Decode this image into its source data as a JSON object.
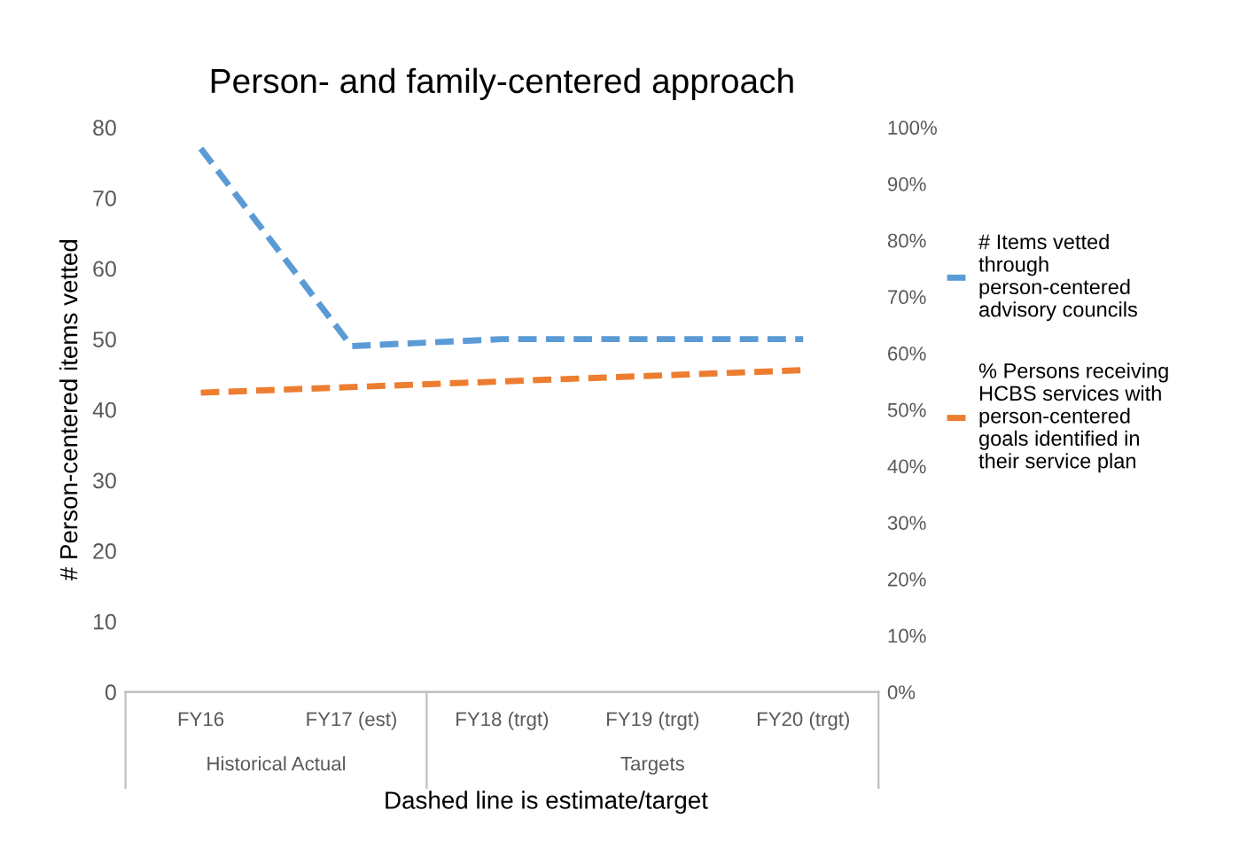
{
  "chart_data": {
    "type": "line",
    "title": "Person- and family-centered approach",
    "ylabel": "# Person-centered items vetted",
    "categories": [
      "FY16",
      "FY17 (est)",
      "FY18 (trgt)",
      "FY19 (trgt)",
      "FY20 (trgt)"
    ],
    "series": [
      {
        "name": "# Items vetted through person-centered advisory councils",
        "color": "#5b9bd5",
        "values": [
          77,
          49,
          50,
          50,
          50
        ]
      },
      {
        "name": "% Persons receiving HCBS services with person-centered goals identified in their service plan",
        "color": "#ed7d31",
        "values": [
          53,
          54,
          55,
          56,
          57
        ],
        "axis": "y2"
      }
    ],
    "ylim": [
      0,
      80
    ],
    "yticks": [
      0,
      10,
      20,
      30,
      40,
      50,
      60,
      70,
      80
    ],
    "y2lim": [
      0,
      100
    ],
    "y2ticks": [
      {
        "value": 0,
        "label": "0%"
      },
      {
        "value": 10,
        "label": "10%"
      },
      {
        "value": 20,
        "label": "20%"
      },
      {
        "value": 30,
        "label": "30%"
      },
      {
        "value": 40,
        "label": "40%"
      },
      {
        "value": 50,
        "label": "50%"
      },
      {
        "value": 60,
        "label": "60%"
      },
      {
        "value": 70,
        "label": "70%"
      },
      {
        "value": 80,
        "label": "80%"
      },
      {
        "value": 90,
        "label": "90%"
      },
      {
        "value": 100,
        "label": "100%"
      }
    ],
    "line_style": "dashed",
    "grid": false,
    "legend": "right",
    "annotations": [
      "Historical Actual",
      "Targets",
      "Dashed line is estimate/target"
    ]
  }
}
